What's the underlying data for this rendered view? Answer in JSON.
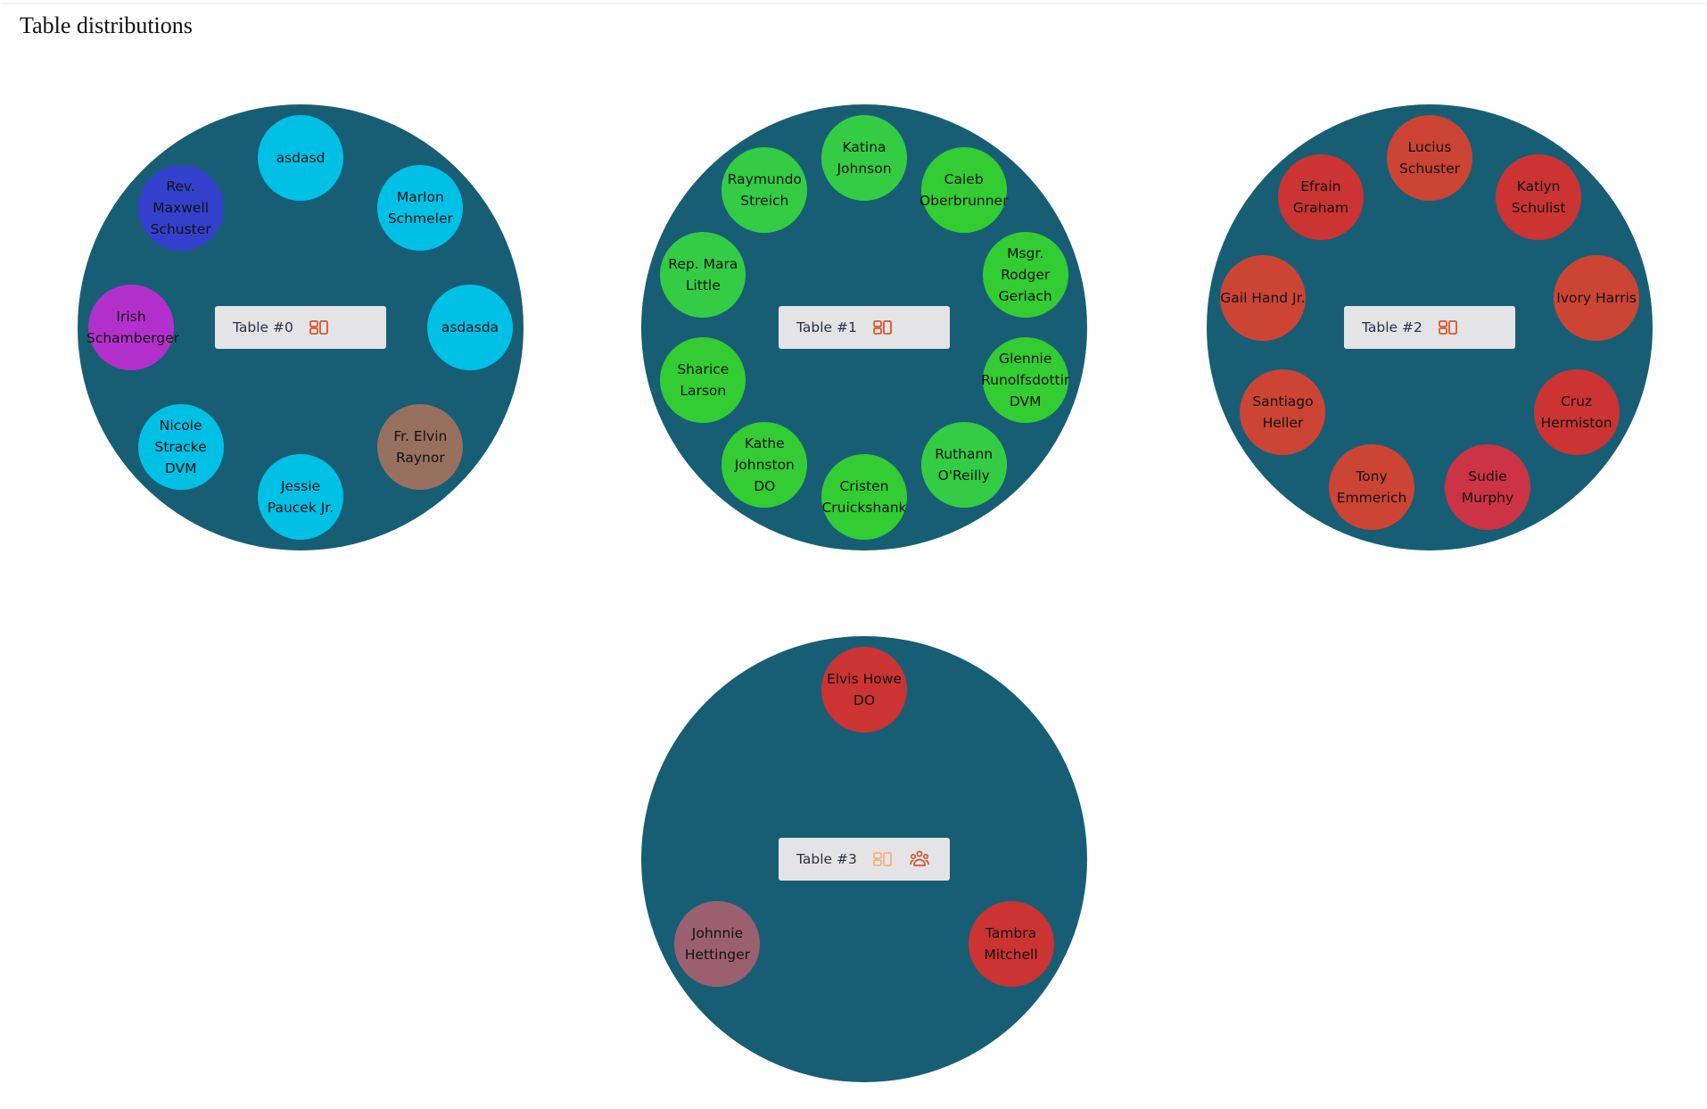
{
  "page": {
    "title": "Table distributions"
  },
  "colors": {
    "table": "#175e75",
    "label_bg": "#e4e4e7",
    "icon": "#d4562a",
    "icon_faded": "#f5b27a"
  },
  "tables": [
    {
      "label": "Table #0",
      "show_group_icon": false,
      "layout_icon_faded": false,
      "seats": [
        {
          "name": "asdasd",
          "color": "#00c0e6"
        },
        {
          "name": "Marlon Schmeler",
          "color": "#00c0e6"
        },
        {
          "name": "asdasda",
          "color": "#00c0e6"
        },
        {
          "name": "Fr. Elvin Raynor",
          "color": "#977060"
        },
        {
          "name": "Jessie Paucek Jr.",
          "color": "#00c0e6"
        },
        {
          "name": "Nicole Stracke DVM",
          "color": "#00c0e6"
        },
        {
          "name": "Irish Schamberger",
          "color": "#b330cc"
        },
        {
          "name": "Rev. Maxwell Schuster",
          "color": "#3340cc"
        }
      ]
    },
    {
      "label": "Table #1",
      "show_group_icon": false,
      "layout_icon_faded": false,
      "seats": [
        {
          "name": "Katina Johnson",
          "color": "#33cc44"
        },
        {
          "name": "Caleb Oberbrunner",
          "color": "#33cc33"
        },
        {
          "name": "Msgr. Rodger Gerlach",
          "color": "#33cc33"
        },
        {
          "name": "Glennie Runolfsdottir DVM",
          "color": "#33cc33"
        },
        {
          "name": "Ruthann O'Reilly",
          "color": "#33cc44"
        },
        {
          "name": "Cristen Cruickshank",
          "color": "#33cc33"
        },
        {
          "name": "Kathe Johnston DO",
          "color": "#33cc33"
        },
        {
          "name": "Sharice Larson",
          "color": "#33cc33"
        },
        {
          "name": "Rep. Mara Little",
          "color": "#33cc44"
        },
        {
          "name": "Raymundo Streich",
          "color": "#33cc44"
        }
      ]
    },
    {
      "label": "Table #2",
      "show_group_icon": false,
      "layout_icon_faded": false,
      "seats": [
        {
          "name": "Lucius Schuster",
          "color": "#cc4433"
        },
        {
          "name": "Katlyn Schulist",
          "color": "#cc3333"
        },
        {
          "name": "Ivory Harris",
          "color": "#cc4433"
        },
        {
          "name": "Cruz Hermiston",
          "color": "#cc3333"
        },
        {
          "name": "Sudie Murphy",
          "color": "#cc3344"
        },
        {
          "name": "Tony Emmerich",
          "color": "#cc4433"
        },
        {
          "name": "Santiago Heller",
          "color": "#cc4433"
        },
        {
          "name": "Gail Hand Jr.",
          "color": "#cc4433"
        },
        {
          "name": "Efrain Graham",
          "color": "#cc3333"
        }
      ]
    },
    {
      "label": "Table #3",
      "show_group_icon": true,
      "layout_icon_faded": true,
      "seats": [
        {
          "name": "Elvis Howe DO",
          "color": "#cc3333"
        },
        {
          "name": "Tambra Mitchell",
          "color": "#cc3333"
        },
        {
          "name": "Johnnie Hettinger",
          "color": "#9a6070"
        }
      ]
    }
  ]
}
